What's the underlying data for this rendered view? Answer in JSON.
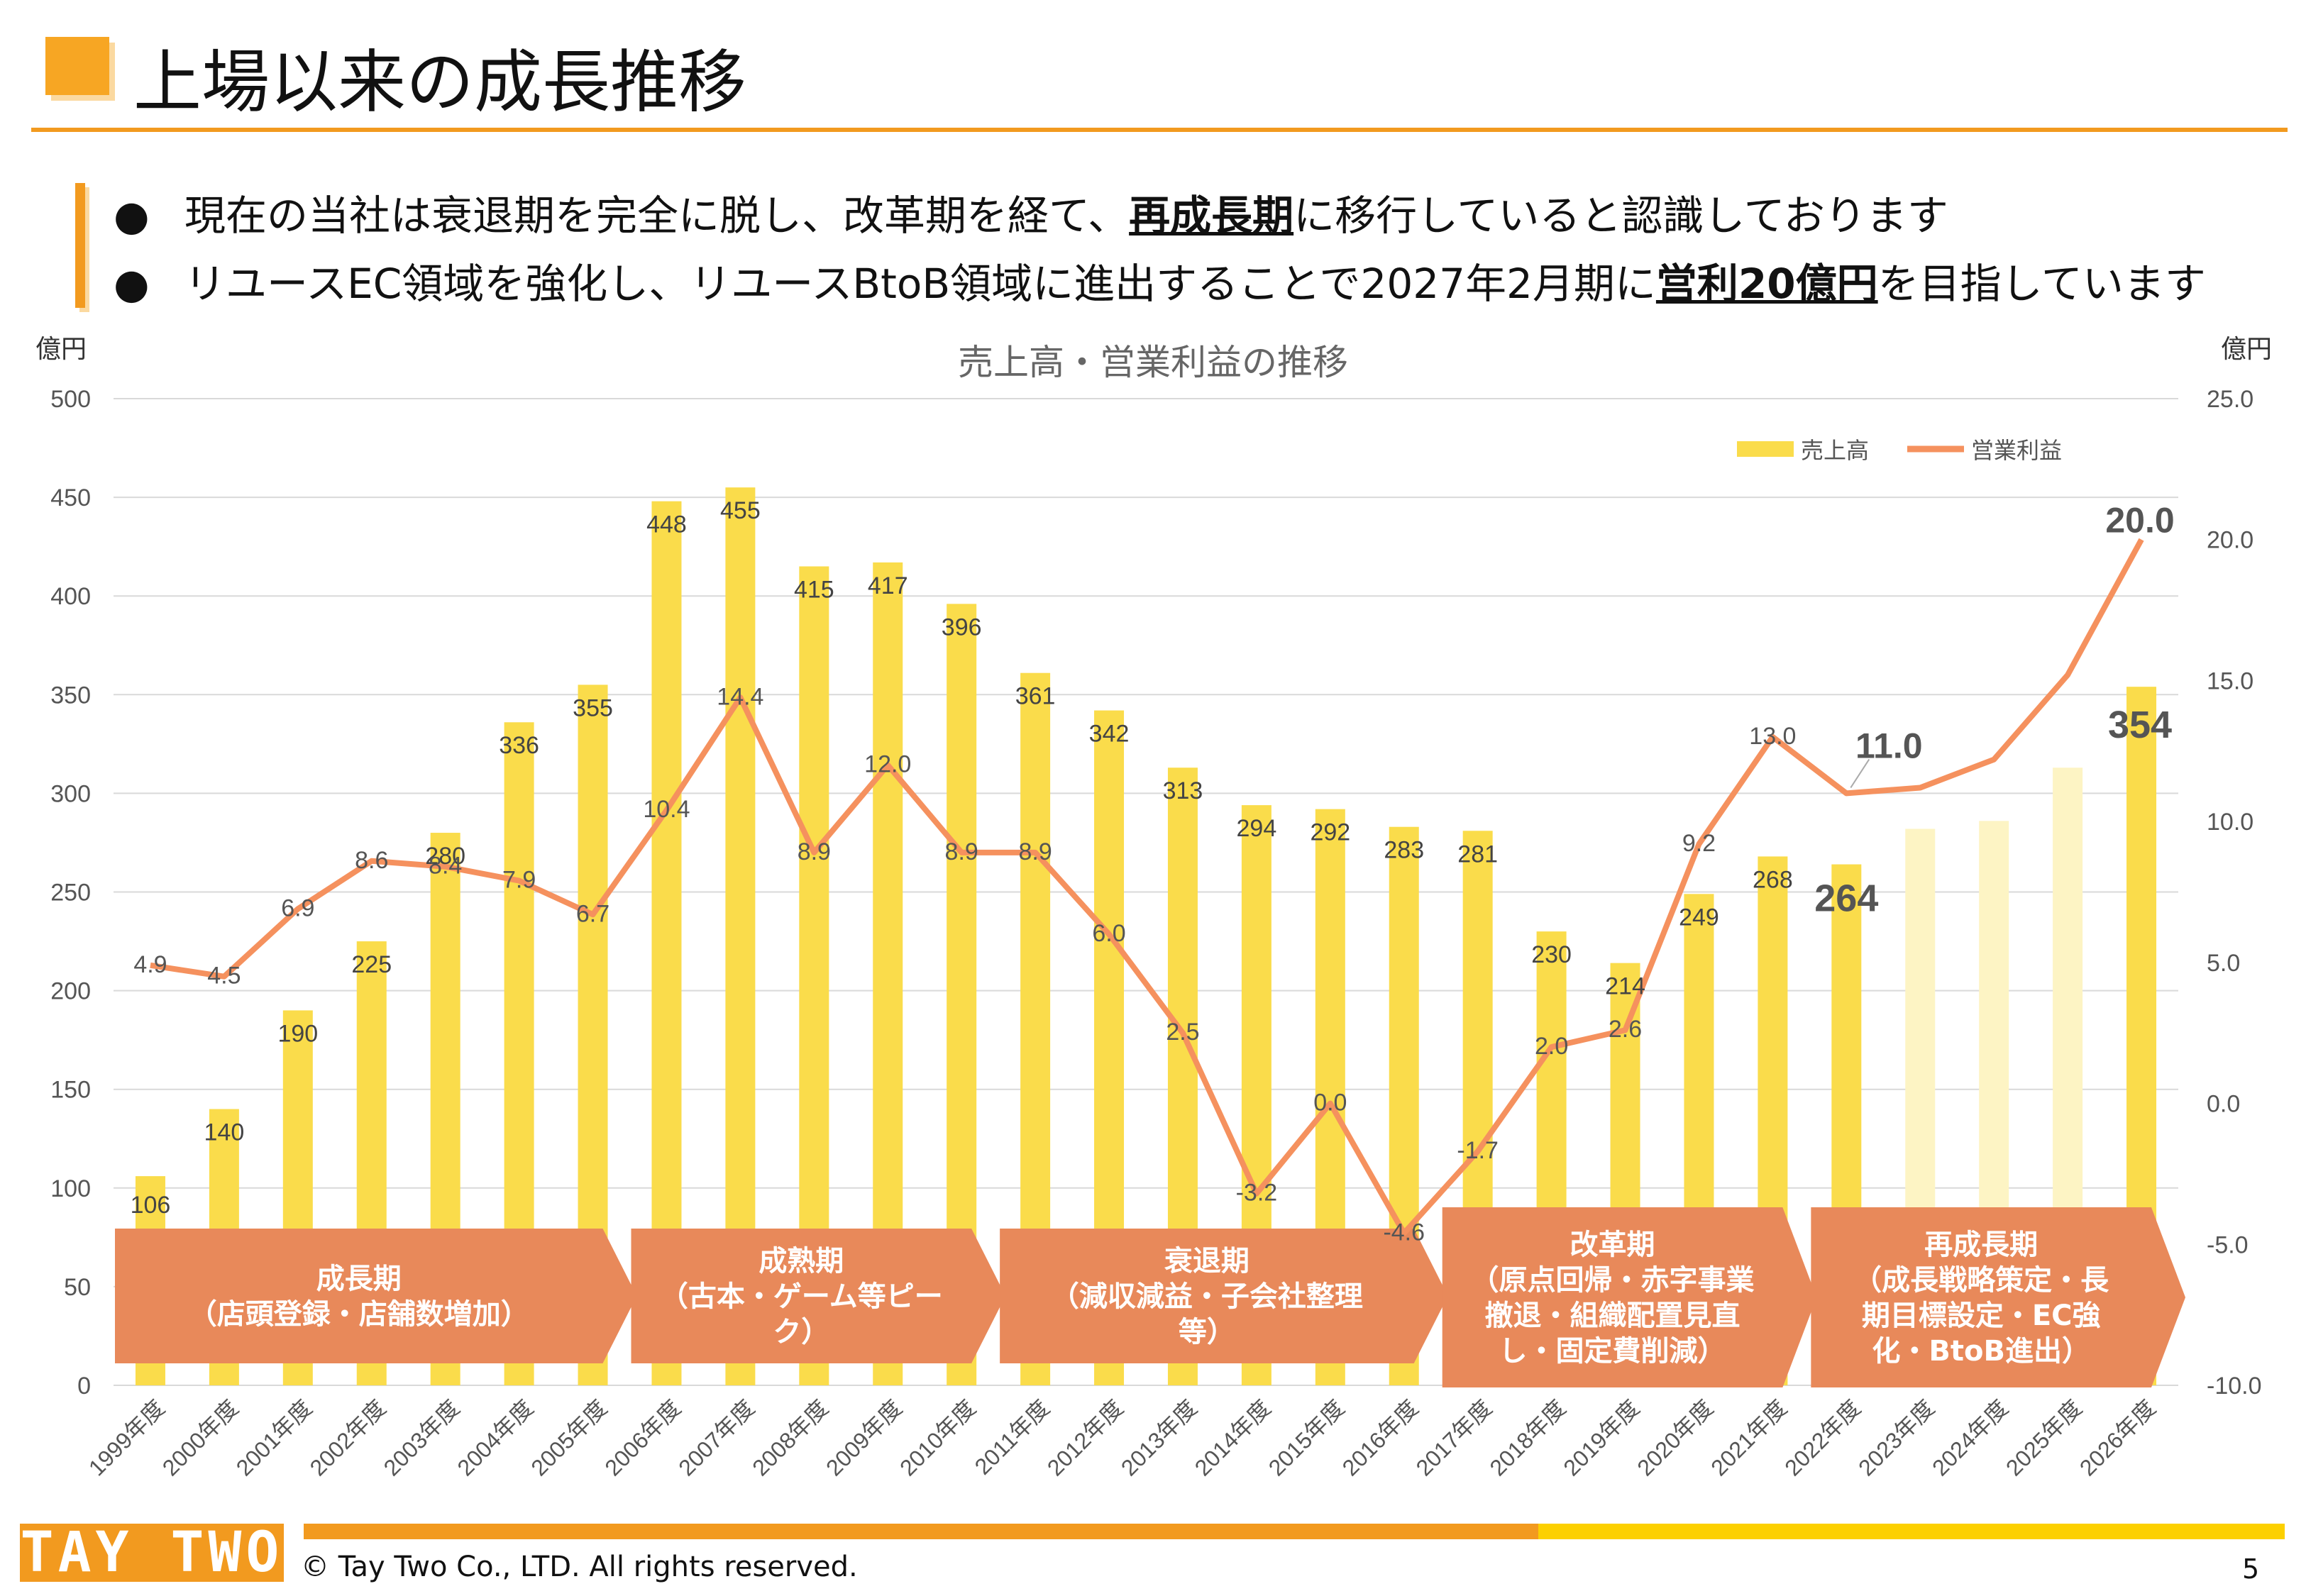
{
  "title": "上場以来の成長推移",
  "bullets": [
    {
      "before": "現在の当社は衰退期を完全に脱し、改革期を経て、",
      "emph": "再成長期",
      "after": "に移行していると認識しております"
    },
    {
      "before": "リユースEC領域を強化し、リユースBtoB領域に進出することで2027年2月期に",
      "emph": "営利20億円",
      "after": "を目指しています"
    }
  ],
  "footer": {
    "logo": "TAY TWO",
    "copyright": "© Tay Two Co., LTD. All rights reserved.",
    "page": "5"
  },
  "colors": {
    "accent": "#f29a1f",
    "bar": "#fadc4b",
    "bar_faded": "#fdf4c4",
    "line": "#f5915e",
    "phase": "#e8895a",
    "axis_text": "#555555"
  },
  "chart_data": {
    "type": "bar",
    "title": "売上高・営業利益の推移",
    "ylabel": "億円",
    "y2label": "億円",
    "ylim": [
      0,
      500
    ],
    "y2lim": [
      -10,
      25
    ],
    "yticks": [
      "0",
      "50",
      "100",
      "150",
      "200",
      "250",
      "300",
      "350",
      "400",
      "450",
      "500"
    ],
    "y2ticks": [
      "-10.0",
      "-5.0",
      "0.0",
      "5.0",
      "10.0",
      "15.0",
      "20.0",
      "25.0"
    ],
    "legend_position": "top-right",
    "categories": [
      "1999年度",
      "2000年度",
      "2001年度",
      "2002年度",
      "2003年度",
      "2004年度",
      "2005年度",
      "2006年度",
      "2007年度",
      "2008年度",
      "2009年度",
      "2010年度",
      "2011年度",
      "2012年度",
      "2013年度",
      "2014年度",
      "2015年度",
      "2016年度",
      "2017年度",
      "2018年度",
      "2019年度",
      "2020年度",
      "2021年度",
      "2022年度",
      "2023年度",
      "2024年度",
      "2025年度",
      "2026年度"
    ],
    "series": [
      {
        "name": "売上高",
        "type": "bar",
        "values": [
          106,
          140,
          190,
          225,
          280,
          336,
          355,
          448,
          455,
          415,
          417,
          396,
          361,
          342,
          313,
          294,
          292,
          283,
          281,
          230,
          214,
          249,
          268,
          264,
          282,
          286,
          313,
          354
        ],
        "labels": [
          "106",
          "140",
          "190",
          "225",
          "280",
          "336",
          "355",
          "448",
          "455",
          "415",
          "417",
          "396",
          "361",
          "342",
          "313",
          "294",
          "292",
          "283",
          "281",
          "230",
          "214",
          "249",
          "268",
          "264",
          "",
          "",
          "",
          "354"
        ]
      },
      {
        "name": "営業利益",
        "type": "line",
        "values": [
          4.9,
          4.5,
          6.9,
          8.6,
          8.4,
          7.9,
          6.7,
          10.4,
          14.4,
          8.9,
          12.0,
          8.9,
          8.9,
          6.0,
          2.5,
          -3.2,
          0.0,
          -4.6,
          -1.7,
          2.0,
          2.6,
          9.2,
          13.0,
          11.0,
          11.2,
          12.2,
          15.2,
          20.0
        ],
        "labels": [
          "4.9",
          "4.5",
          "6.9",
          "8.6",
          "8.4",
          "7.9",
          "6.7",
          "10.4",
          "14.4",
          "8.9",
          "12.0",
          "8.9",
          "8.9",
          "6.0",
          "2.5",
          "-3.2",
          "0.0",
          "-4.6",
          "-1.7",
          "2.0",
          "2.6",
          "9.2",
          "13.0",
          "11.0",
          "",
          "",
          "",
          "20.0"
        ]
      }
    ],
    "phases": [
      {
        "lines": [
          "成長期",
          "（店頭登録・店舗数増加）"
        ],
        "from": "1999年度",
        "to": "2005年度"
      },
      {
        "lines": [
          "成熟期",
          "（古本・ゲーム等ピー",
          "ク）"
        ],
        "from": "2006年度",
        "to": "2010年度"
      },
      {
        "lines": [
          "衰退期",
          "（減収減益・子会社整理",
          "等）"
        ],
        "from": "2011年度",
        "to": "2016年度"
      },
      {
        "lines": [
          "改革期",
          "（原点回帰・赤字事業",
          "撤退・組織配置見直",
          "し・固定費削減）"
        ],
        "from": "2017年度",
        "to": "2021年度"
      },
      {
        "lines": [
          "再成長期",
          "（成長戦略策定・長",
          "期目標設定・EC強",
          "化・BtoB進出）"
        ],
        "from": "2022年度",
        "to": "2026年度"
      }
    ]
  }
}
